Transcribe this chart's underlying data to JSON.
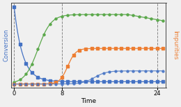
{
  "title": "",
  "xlabel": "Time",
  "ylabel_left": "Conversion",
  "ylabel_right": "Impurities",
  "xlim": [
    -0.5,
    25.5
  ],
  "ylim_left": [
    -0.05,
    1.05
  ],
  "ylim_right": [
    -0.05,
    1.05
  ],
  "vlines": [
    0,
    8,
    24
  ],
  "xticks": [
    0,
    8,
    24
  ],
  "color_blue": "#4472C4",
  "color_green": "#5BA84B",
  "color_orange": "#ED7D31",
  "bg_color": "#f0f0f0"
}
